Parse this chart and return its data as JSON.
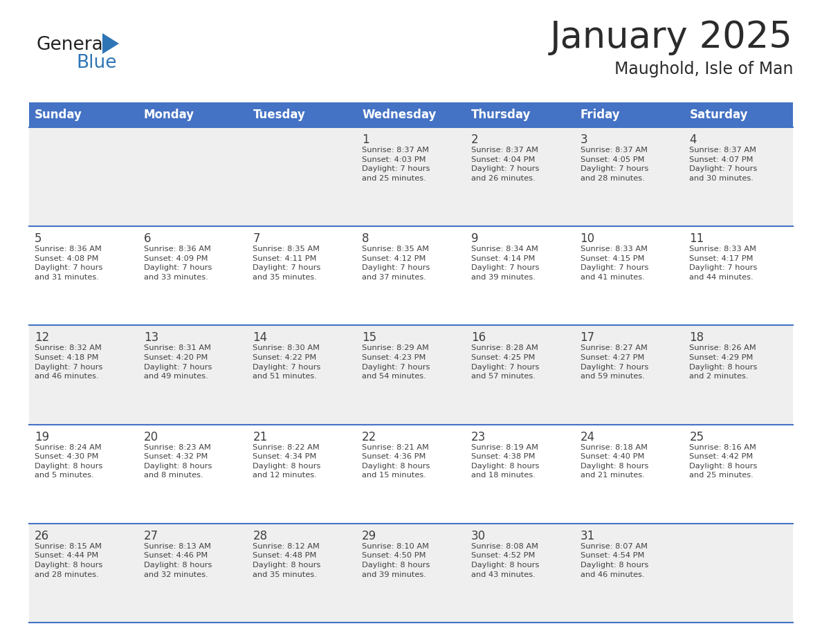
{
  "title": "January 2025",
  "subtitle": "Maughold, Isle of Man",
  "header_bg": "#4472C4",
  "header_text_color": "#FFFFFF",
  "days_of_week": [
    "Sunday",
    "Monday",
    "Tuesday",
    "Wednesday",
    "Thursday",
    "Friday",
    "Saturday"
  ],
  "cell_bg_even": "#EFEFEF",
  "cell_bg_odd": "#FFFFFF",
  "row_line_color": "#4472C4",
  "text_color": "#404040",
  "logo_general_color": "#222222",
  "logo_blue_color": "#2E75B6",
  "title_fontsize": 38,
  "subtitle_fontsize": 17,
  "header_fontsize": 12,
  "day_num_fontsize": 12,
  "info_fontsize": 8.2,
  "calendar": [
    [
      {
        "day": null,
        "info": null
      },
      {
        "day": null,
        "info": null
      },
      {
        "day": null,
        "info": null
      },
      {
        "day": "1",
        "info": "Sunrise: 8:37 AM\nSunset: 4:03 PM\nDaylight: 7 hours\nand 25 minutes."
      },
      {
        "day": "2",
        "info": "Sunrise: 8:37 AM\nSunset: 4:04 PM\nDaylight: 7 hours\nand 26 minutes."
      },
      {
        "day": "3",
        "info": "Sunrise: 8:37 AM\nSunset: 4:05 PM\nDaylight: 7 hours\nand 28 minutes."
      },
      {
        "day": "4",
        "info": "Sunrise: 8:37 AM\nSunset: 4:07 PM\nDaylight: 7 hours\nand 30 minutes."
      }
    ],
    [
      {
        "day": "5",
        "info": "Sunrise: 8:36 AM\nSunset: 4:08 PM\nDaylight: 7 hours\nand 31 minutes."
      },
      {
        "day": "6",
        "info": "Sunrise: 8:36 AM\nSunset: 4:09 PM\nDaylight: 7 hours\nand 33 minutes."
      },
      {
        "day": "7",
        "info": "Sunrise: 8:35 AM\nSunset: 4:11 PM\nDaylight: 7 hours\nand 35 minutes."
      },
      {
        "day": "8",
        "info": "Sunrise: 8:35 AM\nSunset: 4:12 PM\nDaylight: 7 hours\nand 37 minutes."
      },
      {
        "day": "9",
        "info": "Sunrise: 8:34 AM\nSunset: 4:14 PM\nDaylight: 7 hours\nand 39 minutes."
      },
      {
        "day": "10",
        "info": "Sunrise: 8:33 AM\nSunset: 4:15 PM\nDaylight: 7 hours\nand 41 minutes."
      },
      {
        "day": "11",
        "info": "Sunrise: 8:33 AM\nSunset: 4:17 PM\nDaylight: 7 hours\nand 44 minutes."
      }
    ],
    [
      {
        "day": "12",
        "info": "Sunrise: 8:32 AM\nSunset: 4:18 PM\nDaylight: 7 hours\nand 46 minutes."
      },
      {
        "day": "13",
        "info": "Sunrise: 8:31 AM\nSunset: 4:20 PM\nDaylight: 7 hours\nand 49 minutes."
      },
      {
        "day": "14",
        "info": "Sunrise: 8:30 AM\nSunset: 4:22 PM\nDaylight: 7 hours\nand 51 minutes."
      },
      {
        "day": "15",
        "info": "Sunrise: 8:29 AM\nSunset: 4:23 PM\nDaylight: 7 hours\nand 54 minutes."
      },
      {
        "day": "16",
        "info": "Sunrise: 8:28 AM\nSunset: 4:25 PM\nDaylight: 7 hours\nand 57 minutes."
      },
      {
        "day": "17",
        "info": "Sunrise: 8:27 AM\nSunset: 4:27 PM\nDaylight: 7 hours\nand 59 minutes."
      },
      {
        "day": "18",
        "info": "Sunrise: 8:26 AM\nSunset: 4:29 PM\nDaylight: 8 hours\nand 2 minutes."
      }
    ],
    [
      {
        "day": "19",
        "info": "Sunrise: 8:24 AM\nSunset: 4:30 PM\nDaylight: 8 hours\nand 5 minutes."
      },
      {
        "day": "20",
        "info": "Sunrise: 8:23 AM\nSunset: 4:32 PM\nDaylight: 8 hours\nand 8 minutes."
      },
      {
        "day": "21",
        "info": "Sunrise: 8:22 AM\nSunset: 4:34 PM\nDaylight: 8 hours\nand 12 minutes."
      },
      {
        "day": "22",
        "info": "Sunrise: 8:21 AM\nSunset: 4:36 PM\nDaylight: 8 hours\nand 15 minutes."
      },
      {
        "day": "23",
        "info": "Sunrise: 8:19 AM\nSunset: 4:38 PM\nDaylight: 8 hours\nand 18 minutes."
      },
      {
        "day": "24",
        "info": "Sunrise: 8:18 AM\nSunset: 4:40 PM\nDaylight: 8 hours\nand 21 minutes."
      },
      {
        "day": "25",
        "info": "Sunrise: 8:16 AM\nSunset: 4:42 PM\nDaylight: 8 hours\nand 25 minutes."
      }
    ],
    [
      {
        "day": "26",
        "info": "Sunrise: 8:15 AM\nSunset: 4:44 PM\nDaylight: 8 hours\nand 28 minutes."
      },
      {
        "day": "27",
        "info": "Sunrise: 8:13 AM\nSunset: 4:46 PM\nDaylight: 8 hours\nand 32 minutes."
      },
      {
        "day": "28",
        "info": "Sunrise: 8:12 AM\nSunset: 4:48 PM\nDaylight: 8 hours\nand 35 minutes."
      },
      {
        "day": "29",
        "info": "Sunrise: 8:10 AM\nSunset: 4:50 PM\nDaylight: 8 hours\nand 39 minutes."
      },
      {
        "day": "30",
        "info": "Sunrise: 8:08 AM\nSunset: 4:52 PM\nDaylight: 8 hours\nand 43 minutes."
      },
      {
        "day": "31",
        "info": "Sunrise: 8:07 AM\nSunset: 4:54 PM\nDaylight: 8 hours\nand 46 minutes."
      },
      {
        "day": null,
        "info": null
      }
    ]
  ]
}
